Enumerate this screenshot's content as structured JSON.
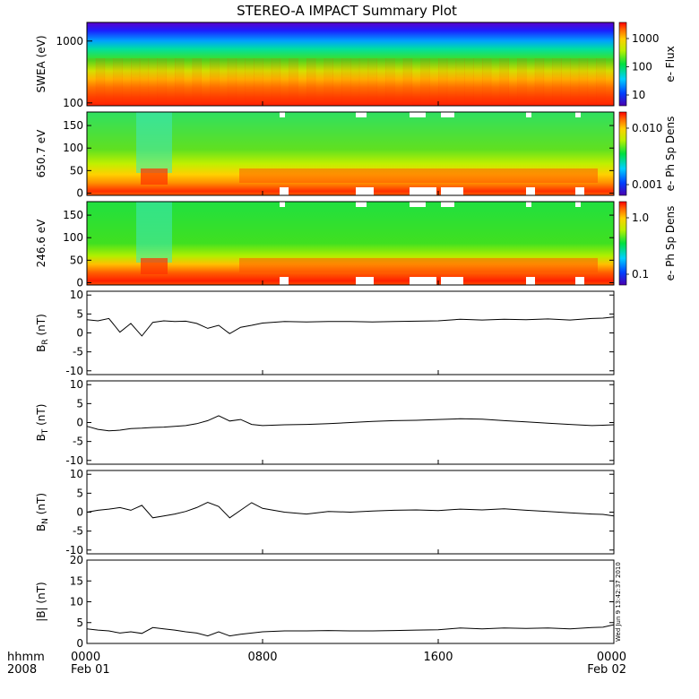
{
  "title": "STEREO-A IMPACT Summary Plot",
  "footer": {
    "row1_label": "hhmm",
    "row2_label": "2008",
    "ticks": [
      {
        "hhmm": "0000",
        "date": "Feb 01"
      },
      {
        "hhmm": "0800",
        "date": ""
      },
      {
        "hhmm": "1600",
        "date": ""
      },
      {
        "hhmm": "0000",
        "date": "Feb 02"
      }
    ]
  },
  "side_stamp": "Wed Jun  9 13:42:37 2010",
  "chart_data": [
    {
      "type": "heatmap",
      "ylabel": "SWEA (eV)",
      "yscale": "log",
      "ylim": [
        90,
        2000
      ],
      "yticks": [
        "1000",
        "100"
      ],
      "colorbar": {
        "label": "e- Flux",
        "scale": "log",
        "ticks": [
          "1000",
          "100",
          "10"
        ]
      },
      "description_values": {
        "high_energy_flux": "low (purple/blue)",
        "low_energy_flux": "high (red)"
      }
    },
    {
      "type": "heatmap",
      "ylabel": "650.7 eV",
      "ylim": [
        -5,
        180
      ],
      "yticks": [
        "150",
        "100",
        "50",
        "0"
      ],
      "colorbar": {
        "label": "e- Ph Sp Dens",
        "scale": "log",
        "ticks": [
          "0.010",
          "0.001"
        ]
      }
    },
    {
      "type": "heatmap",
      "ylabel": "246.6 eV",
      "ylim": [
        -5,
        180
      ],
      "yticks": [
        "150",
        "100",
        "50",
        "0"
      ],
      "colorbar": {
        "label": "e- Ph Sp Dens",
        "scale": "log",
        "ticks": [
          "1.0",
          "0.1"
        ]
      }
    },
    {
      "type": "line",
      "ylabel": "B",
      "ysub": "R",
      "yunit": " (nT)",
      "ylim": [
        -11,
        11
      ],
      "yticks": [
        "10",
        "5",
        "0",
        "-5",
        "-10"
      ],
      "x_hours": [
        0,
        0.5,
        1,
        1.5,
        2,
        2.5,
        3,
        3.5,
        4,
        4.5,
        5,
        5.5,
        6,
        6.5,
        7,
        7.5,
        8,
        9,
        10,
        11,
        12,
        13,
        14,
        15,
        16,
        17,
        18,
        19,
        20,
        21,
        22,
        23,
        23.5,
        24
      ],
      "values": [
        3.5,
        3.2,
        3.8,
        0.2,
        2.5,
        -0.8,
        2.8,
        3.2,
        3.0,
        3.1,
        2.5,
        1.2,
        2.0,
        -0.2,
        1.5,
        2.0,
        2.6,
        3.0,
        2.9,
        3.0,
        3.0,
        2.9,
        3.0,
        3.1,
        3.2,
        3.6,
        3.4,
        3.6,
        3.5,
        3.7,
        3.4,
        3.8,
        3.9,
        4.2
      ]
    },
    {
      "type": "line",
      "ylabel": "B",
      "ysub": "T",
      "yunit": " (nT)",
      "ylim": [
        -11,
        11
      ],
      "yticks": [
        "10",
        "5",
        "0",
        "-5",
        "-10"
      ],
      "x_hours": [
        0,
        0.5,
        1,
        1.5,
        2,
        2.5,
        3,
        3.5,
        4,
        4.5,
        5,
        5.5,
        6,
        6.5,
        7,
        7.5,
        8,
        9,
        10,
        11,
        12,
        13,
        14,
        15,
        16,
        17,
        18,
        19,
        20,
        21,
        22,
        23,
        23.5,
        24
      ],
      "values": [
        -1.0,
        -1.8,
        -2.2,
        -2.0,
        -1.6,
        -1.5,
        -1.3,
        -1.2,
        -1.0,
        -0.8,
        -0.3,
        0.5,
        1.8,
        0.4,
        0.8,
        -0.5,
        -0.8,
        -0.6,
        -0.5,
        -0.3,
        0.0,
        0.3,
        0.5,
        0.6,
        0.8,
        1.0,
        0.9,
        0.5,
        0.2,
        -0.2,
        -0.5,
        -0.8,
        -0.7,
        -0.6
      ]
    },
    {
      "type": "line",
      "ylabel": "B",
      "ysub": "N",
      "yunit": " (nT)",
      "ylim": [
        -11,
        11
      ],
      "yticks": [
        "10",
        "5",
        "0",
        "-5",
        "-10"
      ],
      "x_hours": [
        0,
        0.5,
        1,
        1.5,
        2,
        2.5,
        3,
        3.5,
        4,
        4.5,
        5,
        5.5,
        6,
        6.5,
        7,
        7.5,
        8,
        9,
        10,
        11,
        12,
        13,
        14,
        15,
        16,
        17,
        18,
        19,
        20,
        21,
        22,
        23,
        23.5,
        24
      ],
      "values": [
        0.0,
        0.5,
        0.8,
        1.2,
        0.5,
        1.8,
        -1.5,
        -1.0,
        -0.5,
        0.2,
        1.2,
        2.6,
        1.5,
        -1.5,
        0.5,
        2.5,
        1.0,
        0.0,
        -0.5,
        0.2,
        0.0,
        0.3,
        0.5,
        0.6,
        0.4,
        0.8,
        0.6,
        0.9,
        0.5,
        0.2,
        -0.2,
        -0.5,
        -0.6,
        -1.0
      ]
    },
    {
      "type": "line",
      "ylabel": "|B|",
      "ysub": "",
      "yunit": " (nT)",
      "ylim": [
        0,
        20
      ],
      "yticks": [
        "20",
        "15",
        "10",
        "5",
        "0"
      ],
      "x_hours": [
        0,
        0.5,
        1,
        1.5,
        2,
        2.5,
        3,
        3.5,
        4,
        4.5,
        5,
        5.5,
        6,
        6.5,
        7,
        7.5,
        8,
        9,
        10,
        11,
        12,
        13,
        14,
        15,
        16,
        17,
        18,
        19,
        20,
        21,
        22,
        23,
        23.5,
        24
      ],
      "values": [
        3.5,
        3.2,
        3.0,
        2.5,
        2.8,
        2.4,
        3.8,
        3.5,
        3.2,
        2.8,
        2.5,
        1.8,
        2.8,
        1.8,
        2.2,
        2.5,
        2.8,
        3.0,
        3.0,
        3.1,
        3.0,
        3.0,
        3.1,
        3.2,
        3.3,
        3.7,
        3.5,
        3.7,
        3.6,
        3.7,
        3.5,
        3.8,
        3.9,
        4.5
      ]
    }
  ]
}
